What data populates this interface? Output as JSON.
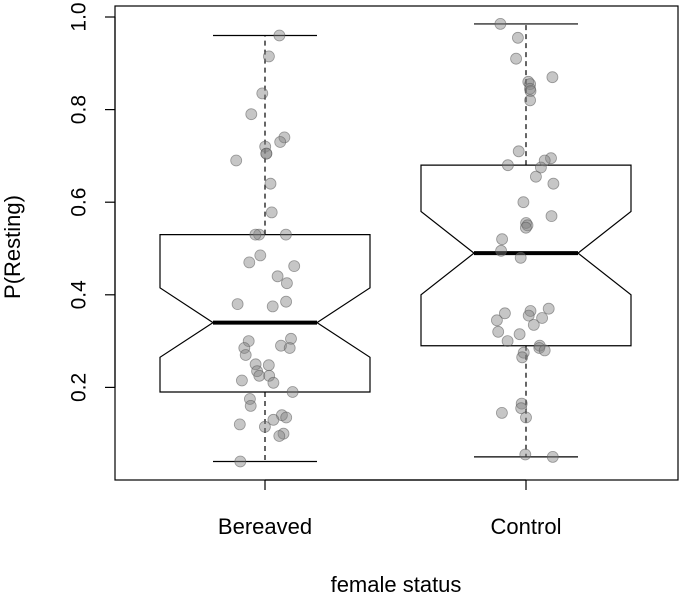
{
  "chart_data": {
    "type": "boxplot",
    "title": "",
    "xlabel": "female status",
    "ylabel": "P(Resting)",
    "ylim": [
      0.0,
      1.0
    ],
    "y_ticks": [
      0.2,
      0.4,
      0.6,
      0.8,
      1.0
    ],
    "y_tick_labels": [
      "0.2",
      "0.4",
      "0.6",
      "0.8",
      "1.0"
    ],
    "notched": true,
    "categories": [
      "Bereaved",
      "Control"
    ],
    "boxes": [
      {
        "name": "Bereaved",
        "whisker_low": 0.04,
        "q1": 0.19,
        "median": 0.34,
        "q3": 0.53,
        "whisker_high": 0.96,
        "notch_low": 0.265,
        "notch_high": 0.415,
        "points": [
          0.96,
          0.915,
          0.835,
          0.79,
          0.74,
          0.73,
          0.72,
          0.705,
          0.705,
          0.69,
          0.64,
          0.578,
          0.53,
          0.53,
          0.53,
          0.485,
          0.47,
          0.462,
          0.44,
          0.425,
          0.385,
          0.38,
          0.375,
          0.305,
          0.3,
          0.29,
          0.285,
          0.285,
          0.27,
          0.25,
          0.248,
          0.235,
          0.225,
          0.225,
          0.215,
          0.21,
          0.19,
          0.175,
          0.16,
          0.14,
          0.135,
          0.13,
          0.12,
          0.115,
          0.1,
          0.095,
          0.04
        ]
      },
      {
        "name": "Control",
        "whisker_low": 0.05,
        "q1": 0.29,
        "median": 0.49,
        "q3": 0.68,
        "whisker_high": 0.985,
        "notch_low": 0.4,
        "notch_high": 0.58,
        "points": [
          0.985,
          0.955,
          0.91,
          0.87,
          0.86,
          0.855,
          0.845,
          0.84,
          0.82,
          0.71,
          0.695,
          0.69,
          0.68,
          0.675,
          0.655,
          0.64,
          0.6,
          0.57,
          0.555,
          0.55,
          0.545,
          0.52,
          0.495,
          0.48,
          0.37,
          0.365,
          0.36,
          0.355,
          0.35,
          0.345,
          0.335,
          0.32,
          0.315,
          0.3,
          0.29,
          0.285,
          0.28,
          0.275,
          0.265,
          0.165,
          0.155,
          0.145,
          0.135,
          0.055,
          0.05
        ]
      }
    ]
  }
}
